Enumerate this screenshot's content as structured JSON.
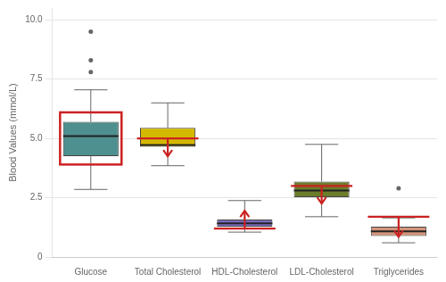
{
  "chart_data": {
    "type": "box",
    "ylabel": "Blood Values (mmol/L)",
    "categories": [
      "Glucose",
      "Total Cholesterol",
      "HDL-Cholesterol",
      "LDL-Cholesterol",
      "Triglycerides"
    ],
    "colors": [
      "#4e8f8f",
      "#d4b800",
      "#7b6bbf",
      "#6b7c2a",
      "#d4957a"
    ],
    "values": [
      {
        "q1": 4.25,
        "median": 5.1,
        "q3": 5.7,
        "whislo": 2.85,
        "whishi": 7.05,
        "fliers": [
          7.8,
          8.3,
          9.5
        ]
      },
      {
        "q1": 4.65,
        "median": 4.72,
        "q3": 5.45,
        "whislo": 3.85,
        "whishi": 6.5,
        "fliers": []
      },
      {
        "q1": 1.28,
        "median": 1.42,
        "q3": 1.58,
        "whislo": 1.05,
        "whishi": 2.38,
        "fliers": []
      },
      {
        "q1": 2.52,
        "median": 2.8,
        "q3": 3.18,
        "whislo": 1.7,
        "whishi": 4.75,
        "fliers": []
      },
      {
        "q1": 0.88,
        "median": 1.08,
        "q3": 1.28,
        "whislo": 0.6,
        "whishi": 1.65,
        "fliers": [
          2.9
        ]
      }
    ],
    "normal_ranges": [
      {
        "type": "box",
        "ymin": 3.9,
        "ymax": 6.1,
        "color": "#cc2222"
      },
      {
        "type": "hline_arrow_down",
        "y": 5.0,
        "arrow_dy": -0.75,
        "color": "#cc2222"
      },
      {
        "type": "hline_arrow_up",
        "y": 1.2,
        "arrow_dy": 0.75,
        "color": "#cc2222"
      },
      {
        "type": "hline_arrow_down",
        "y": 3.0,
        "arrow_dy": -0.75,
        "color": "#cc2222"
      },
      {
        "type": "hline_arrow_down",
        "y": 1.7,
        "arrow_dy": -0.85,
        "color": "#cc2222"
      }
    ],
    "ylim": [
      0,
      10.5
    ],
    "yticks": [
      0,
      2.5,
      {
        "value": 5,
        "label": "5.0"
      },
      7.5,
      {
        "value": 10,
        "label": "10.0"
      }
    ],
    "grid": true
  }
}
